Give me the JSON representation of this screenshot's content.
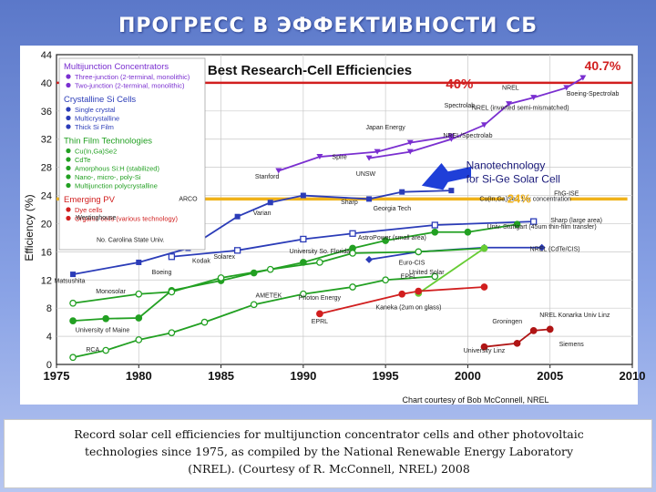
{
  "slide": {
    "title": "ПРОГРЕСС В ЭФФЕКТИВНОСТИ СБ",
    "caption": "Record solar cell efficiencies for multijunction concentrator cells and other photovoltaic technologies since 1975, as compiled by the National Renewable Energy Laboratory (NREL). (Courtesy of R. McConnell, NREL) 2008"
  },
  "colors": {
    "slide_bg": "#5b78c9",
    "red_line": "#d11f1f",
    "yellow_line": "#f0b21a",
    "purple": "#7a2fd0",
    "blue": "#2b3cb8",
    "green": "#22a022",
    "light_green": "#66cc33",
    "dark_red": "#b01515",
    "annotation_arrow": "#1f3fd8"
  },
  "chart_data": {
    "type": "line",
    "title": "Best Research-Cell Efficiencies",
    "xlabel": "",
    "ylabel": "Efficiency (%)",
    "xlim": [
      1975,
      2010
    ],
    "ylim": [
      0,
      44
    ],
    "x_ticks": [
      "1975",
      "1980",
      "1985",
      "1990",
      "1995",
      "2000",
      "2005",
      "2010"
    ],
    "y_ticks": [
      "0",
      "4",
      "8",
      "12",
      "16",
      "20",
      "24",
      "28",
      "32",
      "36",
      "40",
      "44"
    ],
    "grid": true,
    "credit": "Chart courtesy of Bob McConnell, NREL",
    "reference_lines": [
      {
        "value": 40,
        "label": "40%",
        "color": "#d11f1f"
      },
      {
        "value": 23.5,
        "label": "24%",
        "color": "#f0b21a"
      }
    ],
    "top_value_label": "40.7%",
    "legend": [
      {
        "group": "Multijunction Concentrators",
        "color": "#7a2fd0",
        "items": [
          "Three-junction (2-terminal, monolithic)",
          "Two-junction (2-terminal, monolithic)"
        ]
      },
      {
        "group": "Crystalline Si Cells",
        "color": "#2b3cb8",
        "items": [
          "Single crystal",
          "Multicrystalline",
          "Thick Si Film"
        ]
      },
      {
        "group": "Thin Film Technologies",
        "color": "#22a022",
        "items": [
          "Cu(In,Ga)Se2",
          "CdTe",
          "Amorphous Si:H (stabilized)",
          "Nano-, micro-, poly-Si",
          "Multijunction polycrystalline"
        ]
      },
      {
        "group": "Emerging PV",
        "color": "#d11f1f",
        "items": [
          "Dye cells",
          "Organic cells (various technology)"
        ]
      }
    ],
    "series": [
      {
        "name": "Three-junction (2-terminal, monolithic)",
        "color": "#7a2fd0",
        "x": [
          1994,
          1996.5,
          1999,
          2001,
          2002.5,
          2004,
          2006,
          2007
        ],
        "y": [
          29.3,
          30.2,
          32,
          34,
          37,
          37.9,
          39.3,
          40.7
        ]
      },
      {
        "name": "Two-junction (2-terminal, monolithic)",
        "color": "#7a2fd0",
        "x": [
          1988.5,
          1991,
          1994.5,
          1996.5,
          1999
        ],
        "y": [
          27.5,
          29.5,
          30.2,
          31.5,
          32.4
        ]
      },
      {
        "name": "Single crystal",
        "color": "#2b3cb8",
        "x": [
          1976,
          1980,
          1983,
          1986,
          1988,
          1990,
          1994,
          1996,
          1999
        ],
        "y": [
          12.8,
          14.5,
          16.5,
          21,
          23,
          24,
          23.5,
          24.5,
          24.7
        ]
      },
      {
        "name": "Multicrystalline",
        "color": "#2b3cb8",
        "x": [
          1982,
          1986,
          1990,
          1993,
          1998,
          2004
        ],
        "y": [
          15.3,
          16.2,
          17.8,
          18.6,
          19.8,
          20.3
        ]
      },
      {
        "name": "Thick Si Film",
        "color": "#2b3cb8",
        "x": [
          1994,
          1997,
          2001,
          2004.5
        ],
        "y": [
          14.9,
          16,
          16.6,
          16.6
        ]
      },
      {
        "name": "Cu(In,Ga)Se2",
        "color": "#22a022",
        "x": [
          1976,
          1978,
          1980,
          1982,
          1985,
          1987,
          1990,
          1993,
          1995,
          1998,
          2000,
          2003
        ],
        "y": [
          6.2,
          6.5,
          6.6,
          10.5,
          11.9,
          13,
          14.5,
          16.5,
          17.6,
          18.8,
          18.8,
          19.9
        ]
      },
      {
        "name": "CdTe",
        "color": "#22a022",
        "x": [
          1976,
          1980,
          1982,
          1985,
          1988,
          1991,
          1993,
          1997,
          2001
        ],
        "y": [
          8.7,
          10,
          10.3,
          12.3,
          13.5,
          14.5,
          15.8,
          16,
          16.5
        ]
      },
      {
        "name": "Amorphous Si:H (stabilized)",
        "color": "#22a022",
        "x": [
          1976,
          1978,
          1980,
          1982,
          1984,
          1987,
          1990,
          1993,
          1995,
          1998
        ],
        "y": [
          1,
          2,
          3.5,
          4.5,
          6,
          8.5,
          10,
          11,
          12,
          12.5
        ]
      },
      {
        "name": "Nano-, micro-, poly-Si",
        "color": "#66cc33",
        "x": [
          1997,
          2001
        ],
        "y": [
          10.1,
          16.5
        ]
      },
      {
        "name": "Organic cells (various technology)",
        "color": "#b01515",
        "x": [
          2001,
          2003,
          2004,
          2005
        ],
        "y": [
          2.5,
          3,
          4.8,
          5
        ]
      },
      {
        "name": "Dye cells",
        "color": "#d11f1f",
        "x": [
          1991,
          1996,
          1997,
          2001
        ],
        "y": [
          7.2,
          10,
          10.4,
          11
        ]
      }
    ],
    "annotations": [
      "Boeing-Spectrolab",
      "NREL",
      "Spectrolab",
      "NREL (inverted semi-mismatched)",
      "Japan Energy",
      "NREL/Spectrolab",
      "Spire",
      "UNSW",
      "Stanford",
      "ARCO",
      "Varian",
      "Westinghouse",
      "No. Carolina State Univ.",
      "Solarex",
      "Kodak",
      "Boeing",
      "Monosolar",
      "Matsushita",
      "AMETEK",
      "Photon Energy",
      "University So. Florida",
      "Euro-CIS",
      "United Solar",
      "Georgia Tech",
      "Sharp",
      "Cu(In,Ga)Se2 14x concentration",
      "FhG-ISE",
      "Univ. Stuttgart (45um thin-film transfer)",
      "AstroPower (small area)",
      "Kaneka (2um on glass)",
      "EPFL",
      "EPRL",
      "Groningen",
      "NREL Konarka Univ Linz",
      "Siemens",
      "University Linz",
      "RCA",
      "University of Maine",
      "NREL (CdTe/CIS)",
      "Sharp (large area)"
    ],
    "overlay_text": [
      {
        "text": "Nanotechnology for Si-Ge Solar Cell"
      },
      {
        "text": "24%"
      }
    ]
  }
}
